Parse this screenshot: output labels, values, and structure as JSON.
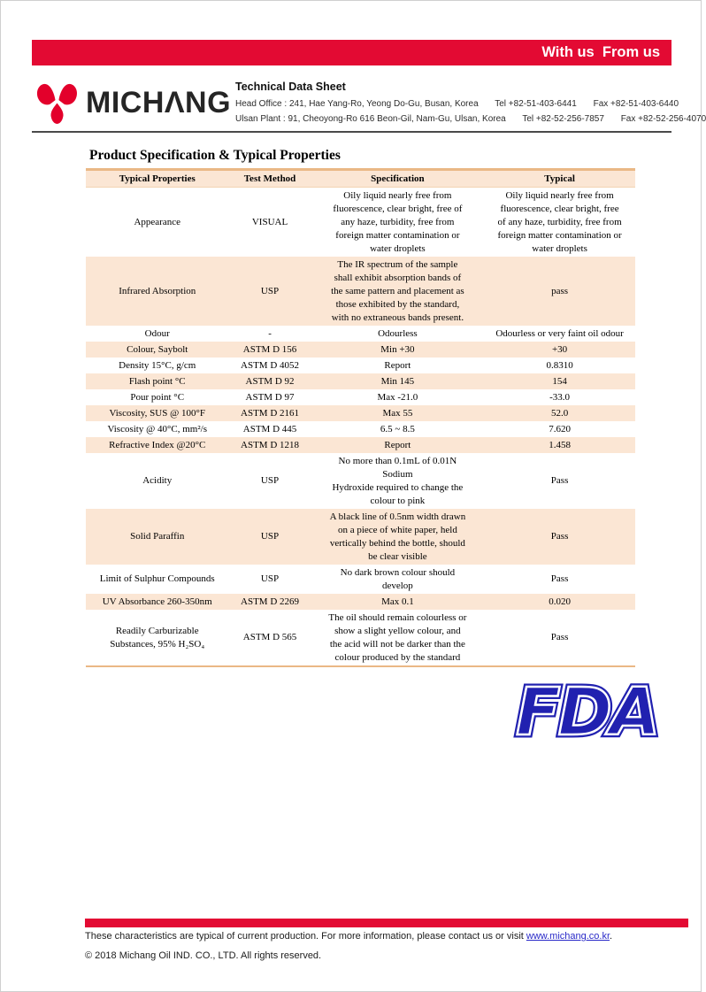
{
  "banner": {
    "slogan": "With us  From us"
  },
  "header": {
    "brand": "MICHΛNG",
    "doc_title": "Technical Data Sheet",
    "address1": {
      "text": "Head Office : 241, Hae Yang-Ro, Yeong Do-Gu, Busan, Korea",
      "tel": "Tel +82-51-403-6441",
      "fax": "Fax +82-51-403-6440"
    },
    "address2": {
      "text": "Ulsan Plant : 91, Cheoyong-Ro 616 Beon-Gil, Nam-Gu, Ulsan, Korea",
      "tel": "Tel +82-52-256-7857",
      "fax": "Fax +82-52-256-4070"
    }
  },
  "section": {
    "title": "Product Specification & Typical Properties"
  },
  "table": {
    "columns": [
      "Typical Properties",
      "Test Method",
      "Specification",
      "Typical"
    ],
    "rows": [
      {
        "property": "Appearance",
        "method": "VISUAL",
        "spec": "Oily liquid nearly free from\nfluorescence, clear bright, free of\nany haze, turbidity, free from\nforeign matter contamination or\nwater droplets",
        "typical": "Oily liquid nearly free from\nfluorescence, clear bright, free\nof any haze, turbidity, free from\nforeign matter contamination or\nwater droplets",
        "shaded": false
      },
      {
        "property": "Infrared Absorption",
        "method": "USP",
        "spec": "The IR spectrum of the sample\nshall exhibit absorption bands of\nthe same pattern and placement as\nthose exhibited by the standard,\nwith no extraneous bands present.",
        "typical": "pass",
        "shaded": true
      },
      {
        "property": "Odour",
        "method": "-",
        "spec": "Odourless",
        "typical": "Odourless or very faint oil odour",
        "shaded": false
      },
      {
        "property": "Colour, Saybolt",
        "method": "ASTM D 156",
        "spec": "Min +30",
        "typical": "+30",
        "shaded": true
      },
      {
        "property": "Density 15°C, g/cm",
        "method": "ASTM D 4052",
        "spec": "Report",
        "typical": "0.8310",
        "shaded": false
      },
      {
        "property": "Flash point °C",
        "method": "ASTM D 92",
        "spec": "Min 145",
        "typical": "154",
        "shaded": true
      },
      {
        "property": "Pour point °C",
        "method": "ASTM D 97",
        "spec": "Max -21.0",
        "typical": "-33.0",
        "shaded": false
      },
      {
        "property": "Viscosity, SUS @ 100°F",
        "method": "ASTM D 2161",
        "spec": "Max 55",
        "typical": "52.0",
        "shaded": true
      },
      {
        "property": "Viscosity @ 40°C, mm²/s",
        "method": "ASTM D 445",
        "spec": "6.5 ~ 8.5",
        "typical": "7.620",
        "shaded": false
      },
      {
        "property": "Refractive Index @20°C",
        "method": "ASTM D 1218",
        "spec": "Report",
        "typical": "1.458",
        "shaded": true
      },
      {
        "property": "Acidity",
        "method": "USP",
        "spec": "No more than 0.1mL of 0.01N\nSodium\nHydroxide required to change the\ncolour to pink",
        "typical": "Pass",
        "shaded": false
      },
      {
        "property": "Solid Paraffin",
        "method": "USP",
        "spec": "A black line of 0.5nm width drawn\non a piece of white paper, held\nvertically behind the bottle, should\nbe clear visible",
        "typical": "Pass",
        "shaded": true
      },
      {
        "property": "Limit of Sulphur Compounds",
        "method": "USP",
        "spec": "No dark brown colour should\ndevelop",
        "typical": "Pass",
        "shaded": false
      },
      {
        "property": "UV Absorbance 260-350nm",
        "method": "ASTM D 2269",
        "spec": "Max 0.1",
        "typical": "0.020",
        "shaded": true
      },
      {
        "property": "Readily Carburizable\nSubstances, 95% H₂SO₄",
        "method": "ASTM D 565",
        "spec": "The oil should remain colourless or\nshow a slight yellow colour, and\nthe acid will not be darker than the\ncolour produced by the standard",
        "typical": "Pass",
        "shaded": false
      }
    ]
  },
  "fda": {
    "text": "FDA"
  },
  "footer": {
    "note_prefix": "These characteristics are typical of current production. For more information, please contact us or visit ",
    "link": "www.michang.co.kr",
    "note_suffix": ".",
    "copyright": "© 2018 Michang Oil IND. CO., LTD. All rights reserved."
  },
  "colors": {
    "accent_red": "#e30a33",
    "logo_red": "#e3002b",
    "table_shade": "#fbe6d4",
    "table_border": "#eab885",
    "fda_blue": "#2121b0",
    "link_blue": "#2929c8"
  }
}
